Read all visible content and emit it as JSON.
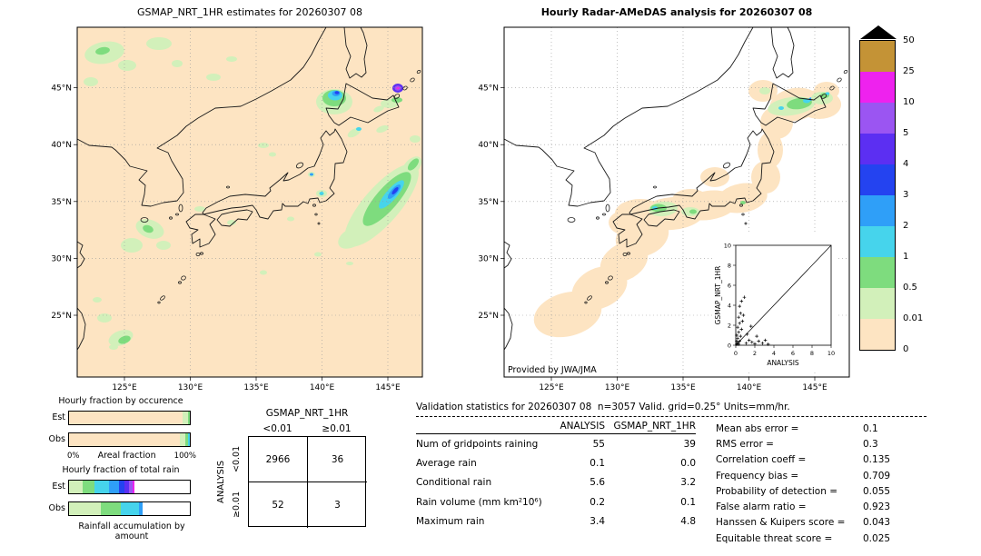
{
  "palette": {
    "peach": "#fde4c2",
    "palegreen": "#d2f0ba",
    "green": "#7edc7e",
    "cyan": "#46d4ec",
    "skyblue": "#2f9ff8",
    "blue": "#2443f0",
    "blueviolet": "#5c2ff2",
    "purple": "#9b55f2",
    "magenta": "#ee22ee",
    "gold": "#c49336",
    "white": "#ffffff",
    "black": "#000000"
  },
  "colorbar": {
    "labels": [
      "50",
      "25",
      "10",
      "5",
      "4",
      "3",
      "2",
      "1",
      "0.5",
      "0.01",
      "0"
    ],
    "colors": [
      "gold",
      "magenta",
      "purple",
      "blueviolet",
      "blue",
      "skyblue",
      "cyan",
      "green",
      "palegreen",
      "peach"
    ],
    "overflow_marker": "black-triangle",
    "units": "mm/hr"
  },
  "chart_data": [
    {
      "type": "map",
      "title": "GSMAP_NRT_1HR estimates for 20260307 08",
      "x_ticks": [
        "125°E",
        "130°E",
        "135°E",
        "140°E",
        "145°E"
      ],
      "y_ticks": [
        "45°N",
        "40°N",
        "35°N",
        "30°N",
        "25°N"
      ],
      "background": "peach",
      "blobs": [
        [
          30,
          28,
          22,
          12,
          -10,
          "palegreen"
        ],
        [
          90,
          18,
          14,
          7,
          0,
          "palegreen"
        ],
        [
          55,
          42,
          10,
          6,
          0,
          "palegreen"
        ],
        [
          15,
          60,
          8,
          5,
          0,
          "palegreen"
        ],
        [
          110,
          40,
          6,
          4,
          0,
          "palegreen"
        ],
        [
          150,
          55,
          8,
          4,
          0,
          "palegreen"
        ],
        [
          170,
          35,
          6,
          3,
          0,
          "palegreen"
        ],
        [
          28,
          26,
          8,
          4,
          -10,
          "green"
        ],
        [
          205,
          130,
          6,
          3,
          0,
          "palegreen"
        ],
        [
          215,
          140,
          4,
          2.5,
          0,
          "palegreen"
        ],
        [
          80,
          222,
          16,
          10,
          20,
          "palegreen"
        ],
        [
          60,
          240,
          12,
          8,
          0,
          "palegreen"
        ],
        [
          95,
          240,
          8,
          5,
          0,
          "palegreen"
        ],
        [
          78,
          222,
          6,
          4,
          20,
          "green"
        ],
        [
          135,
          200,
          6,
          3,
          0,
          "palegreen"
        ],
        [
          30,
          320,
          8,
          5,
          0,
          "palegreen"
        ],
        [
          22,
          300,
          5,
          3,
          0,
          "palegreen"
        ],
        [
          48,
          342,
          14,
          8,
          -20,
          "palegreen"
        ],
        [
          40,
          352,
          5,
          3,
          0,
          "palegreen"
        ],
        [
          52,
          344,
          7,
          4,
          -20,
          "green"
        ],
        [
          170,
          215,
          5,
          3,
          0,
          "palegreen"
        ],
        [
          235,
          211,
          4,
          2.5,
          0,
          "palegreen"
        ],
        [
          205,
          270,
          4,
          2.5,
          0,
          "palegreen"
        ],
        [
          265,
          250,
          4,
          2.5,
          0,
          "palegreen"
        ],
        [
          300,
          260,
          4,
          2,
          0,
          "palegreen"
        ],
        [
          325,
          211,
          5,
          3,
          0,
          "palegreen"
        ],
        [
          258,
          162,
          4,
          3,
          0,
          "palegreen"
        ],
        [
          258,
          162,
          2,
          1.5,
          0,
          "skyblue"
        ],
        [
          269,
          183,
          6,
          4,
          0,
          "palegreen"
        ],
        [
          269,
          183,
          2.5,
          2,
          0,
          "cyan"
        ],
        [
          305,
          116,
          8,
          4,
          -30,
          "palegreen"
        ],
        [
          310,
          112,
          3,
          2,
          0,
          "cyan"
        ],
        [
          336,
          112,
          7,
          3.5,
          -20,
          "palegreen"
        ],
        [
          372,
          123,
          6,
          4,
          0,
          "palegreen"
        ],
        [
          335,
          196,
          58,
          20,
          -49,
          "palegreen"
        ],
        [
          302,
          232,
          16,
          10,
          -30,
          "palegreen"
        ],
        [
          318,
          216,
          12,
          7,
          -45,
          "palegreen"
        ],
        [
          368,
          154,
          14,
          8,
          -49,
          "palegreen"
        ],
        [
          341,
          189,
          38,
          12,
          -49,
          "green"
        ],
        [
          370,
          151,
          8,
          4,
          -49,
          "green"
        ],
        [
          346,
          184,
          20,
          6,
          -49,
          "cyan"
        ],
        [
          349,
          181,
          10,
          3.5,
          -49,
          "skyblue"
        ],
        [
          350,
          180,
          5,
          2,
          -49,
          "blue"
        ],
        [
          283,
          82,
          20,
          14,
          0,
          "palegreen"
        ],
        [
          283,
          78,
          13,
          9,
          0,
          "green"
        ],
        [
          284,
          75,
          8,
          5.5,
          0,
          "cyan"
        ],
        [
          285,
          73,
          4.5,
          3,
          0,
          "skyblue"
        ],
        [
          286,
          72,
          2.5,
          1.8,
          0,
          "blue"
        ],
        [
          344,
          84,
          10,
          5,
          0,
          "palegreen"
        ],
        [
          352,
          80,
          6,
          3,
          0,
          "green"
        ],
        [
          332,
          90,
          6,
          3,
          -20,
          "palegreen"
        ],
        [
          353,
          67,
          6,
          5,
          0,
          "blueviolet"
        ],
        [
          353,
          67,
          3.5,
          2.8,
          0,
          "purple"
        ],
        [
          353,
          67,
          1.8,
          1.4,
          0,
          "magenta"
        ]
      ]
    },
    {
      "type": "map",
      "title": "Hourly Radar-AMeDAS analysis for 20260307 08",
      "credit": "Provided by JWA/JMA",
      "x_ticks": [
        "125°E",
        "130°E",
        "135°E",
        "140°E",
        "145°E"
      ],
      "y_ticks": [
        "45°N",
        "40°N",
        "35°N",
        "30°N",
        "25°N"
      ],
      "background": "white",
      "blobs": [
        [
          70,
          316,
          38,
          24,
          -15,
          "peach"
        ],
        [
          105,
          287,
          32,
          22,
          -25,
          "peach"
        ],
        [
          132,
          258,
          28,
          20,
          -30,
          "peach"
        ],
        [
          152,
          230,
          30,
          22,
          -20,
          "peach"
        ],
        [
          135,
          215,
          20,
          14,
          0,
          "peach"
        ],
        [
          150,
          205,
          28,
          16,
          0,
          "peach"
        ],
        [
          185,
          205,
          36,
          18,
          -5,
          "peach"
        ],
        [
          205,
          190,
          20,
          12,
          0,
          "peach"
        ],
        [
          225,
          196,
          32,
          16,
          -8,
          "peach"
        ],
        [
          262,
          188,
          28,
          16,
          -10,
          "peach"
        ],
        [
          288,
          165,
          16,
          18,
          0,
          "peach"
        ],
        [
          293,
          135,
          14,
          20,
          0,
          "peach"
        ],
        [
          300,
          105,
          18,
          18,
          0,
          "peach"
        ],
        [
          320,
          85,
          28,
          18,
          -10,
          "peach"
        ],
        [
          347,
          85,
          24,
          16,
          0,
          "peach"
        ],
        [
          355,
          70,
          14,
          10,
          0,
          "peach"
        ],
        [
          285,
          70,
          16,
          12,
          0,
          "peach"
        ],
        [
          232,
          165,
          16,
          11,
          0,
          "peach"
        ],
        [
          175,
          200,
          16,
          8,
          -5,
          "palegreen"
        ],
        [
          170,
          199,
          9,
          4.5,
          0,
          "green"
        ],
        [
          166,
          199,
          3,
          2,
          0,
          "cyan"
        ],
        [
          205,
          203,
          10,
          5,
          0,
          "palegreen"
        ],
        [
          208,
          203,
          4,
          2.5,
          0,
          "green"
        ],
        [
          263,
          193,
          3,
          2,
          0,
          "green"
        ],
        [
          287,
          70,
          6,
          4,
          0,
          "palegreen"
        ],
        [
          316,
          87,
          26,
          10,
          -8,
          "palegreen"
        ],
        [
          325,
          84,
          14,
          6,
          -8,
          "green"
        ],
        [
          333,
          81,
          4,
          2.5,
          0,
          "cyan"
        ],
        [
          305,
          89,
          3,
          2,
          0,
          "cyan"
        ],
        [
          338,
          79,
          2.5,
          1.8,
          0,
          "skyblue"
        ],
        [
          350,
          78,
          12,
          7,
          0,
          "palegreen"
        ],
        [
          353,
          75,
          5,
          3,
          0,
          "green"
        ],
        [
          356,
          73,
          2.2,
          1.6,
          0,
          "cyan"
        ]
      ],
      "inset": {
        "type": "scatter",
        "xlabel": "ANALYSIS",
        "ylabel": "GSMAP_NRT_1HR",
        "xlim": [
          0,
          10
        ],
        "ylim": [
          0,
          10
        ],
        "ticks": [
          0,
          2,
          4,
          6,
          8,
          10
        ],
        "diagonal": true,
        "points": [
          [
            0.1,
            0.1
          ],
          [
            0.2,
            0.2
          ],
          [
            0.1,
            0.4
          ],
          [
            0.3,
            0.1
          ],
          [
            0.2,
            0.7
          ],
          [
            0.4,
            0.4
          ],
          [
            0.1,
            1.0
          ],
          [
            0.3,
            1.3
          ],
          [
            0.5,
            0.9
          ],
          [
            0.2,
            1.8
          ],
          [
            0.4,
            2.2
          ],
          [
            0.6,
            1.6
          ],
          [
            0.3,
            2.8
          ],
          [
            0.7,
            2.4
          ],
          [
            0.5,
            3.2
          ],
          [
            0.8,
            3.0
          ],
          [
            0.4,
            3.9
          ],
          [
            0.6,
            4.4
          ],
          [
            0.9,
            4.8
          ],
          [
            1.1,
            0.2
          ],
          [
            1.4,
            0.5
          ],
          [
            1.7,
            0.3
          ],
          [
            2.0,
            0.15
          ],
          [
            2.4,
            0.4
          ],
          [
            2.8,
            0.2
          ],
          [
            3.1,
            0.5
          ],
          [
            3.4,
            0.1
          ],
          [
            1.2,
            1.1
          ],
          [
            1.6,
            1.9
          ],
          [
            2.2,
            0.9
          ]
        ]
      }
    },
    {
      "type": "bar",
      "title": "Hourly fraction by occurence",
      "orientation": "horizontal",
      "categories": [
        "Est",
        "Obs"
      ],
      "rows": [
        {
          "label": "Est",
          "segments": [
            [
              "peach",
              94
            ],
            [
              "palegreen",
              4.5
            ],
            [
              "green",
              1.5
            ]
          ]
        },
        {
          "label": "Obs",
          "segments": [
            [
              "peach",
              91.5
            ],
            [
              "palegreen",
              4.5
            ],
            [
              "green",
              2.5
            ],
            [
              "cyan",
              1.5
            ]
          ]
        }
      ],
      "x_min_label": "0%",
      "x_max_label": "100%",
      "xlabel": "Areal fraction"
    },
    {
      "type": "bar",
      "title": "Hourly fraction of total rain",
      "orientation": "horizontal",
      "categories": [
        "Est",
        "Obs"
      ],
      "rows": [
        {
          "label": "Est",
          "segments": [
            [
              "palegreen",
              11
            ],
            [
              "green",
              10
            ],
            [
              "cyan",
              12
            ],
            [
              "skyblue",
              8
            ],
            [
              "blue",
              5
            ],
            [
              "blueviolet",
              4
            ],
            [
              "purple",
              2.5
            ],
            [
              "magenta",
              1.5
            ],
            [
              "white",
              46
            ]
          ]
        },
        {
          "label": "Obs",
          "segments": [
            [
              "palegreen",
              26
            ],
            [
              "green",
              17
            ],
            [
              "cyan",
              15
            ],
            [
              "skyblue",
              3
            ],
            [
              "white",
              39
            ]
          ]
        }
      ],
      "xlabel": "Rainfall accumulation by amount"
    },
    {
      "type": "table",
      "title": "GSMAP_NRT_1HR",
      "side_label": "ANALYSIS",
      "col_headers": [
        "<0.01",
        "≥0.01"
      ],
      "row_headers": [
        "<0.01",
        "≥0.01"
      ],
      "values": [
        [
          "2966",
          "36"
        ],
        [
          "52",
          "3"
        ]
      ]
    },
    {
      "type": "table",
      "header": "Validation statistics for 20260307 08  n=3057 Valid. grid=0.25° Units=mm/hr.",
      "col_headers": [
        "ANALYSIS",
        "GSMAP_NRT_1HR"
      ],
      "rows": [
        [
          "Num of gridpoints raining",
          "55",
          "39"
        ],
        [
          "Average rain",
          "0.1",
          "0.0"
        ],
        [
          "Conditional rain",
          "5.6",
          "3.2"
        ],
        [
          "Rain volume (mm km²10⁶)",
          "0.2",
          "0.1"
        ],
        [
          "Maximum rain",
          "3.4",
          "4.8"
        ]
      ],
      "scores": [
        [
          "Mean abs error =",
          "0.1"
        ],
        [
          "RMS error =",
          "0.3"
        ],
        [
          "Correlation coeff =",
          "0.135"
        ],
        [
          "Frequency bias =",
          "0.709"
        ],
        [
          "Probability of detection =",
          "0.055"
        ],
        [
          "False alarm ratio =",
          "0.923"
        ],
        [
          "Hanssen & Kuipers score =",
          "0.043"
        ],
        [
          "Equitable threat score =",
          "0.025"
        ]
      ]
    }
  ]
}
